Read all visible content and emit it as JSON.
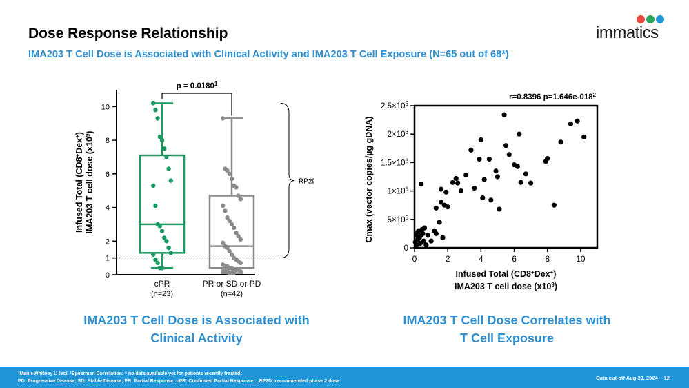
{
  "header": {
    "title": "Dose Response Relationship",
    "subtitle": "IMA203 T Cell Dose is Associated with Clinical Activity and IMA203 T Cell Exposure (N=65 out of 68*)",
    "logo_text": "immatics"
  },
  "colors": {
    "accent": "#2f8fcf",
    "footer": "#2196d8",
    "cpr_green": "#1a9a62",
    "other_gray": "#8a8a8a"
  },
  "chart_data": [
    {
      "type": "box",
      "ylabel_line1": "Infused Total (CD8+Dex+)",
      "ylabel_line2": "IMA203 T cell dose (x10^9)",
      "ylim": [
        0,
        11
      ],
      "yticks": [
        0,
        1,
        2,
        4,
        6,
        8,
        10
      ],
      "reference_line": 1,
      "pvalue_label": "p = 0.0180",
      "pvalue_sup": "1",
      "bracket_label": "RP2D",
      "groups": [
        {
          "name": "cPR",
          "n_label": "(n=23)",
          "color": "#1a9a62",
          "min": 0.4,
          "q1": 1.3,
          "median": 3.0,
          "q3": 7.1,
          "max": 10.2,
          "points": [
            10.2,
            9.8,
            9.3,
            8.2,
            8.0,
            7.5,
            7.0,
            6.3,
            5.6,
            5.3,
            4.1,
            3.0,
            2.9,
            2.6,
            2.2,
            2.0,
            1.6,
            1.3,
            1.2,
            0.9,
            0.7,
            0.4,
            0.4
          ]
        },
        {
          "name": "PR or SD or PD",
          "n_label": "(n=42)",
          "color": "#8a8a8a",
          "min": 0.1,
          "q1": 0.4,
          "median": 1.7,
          "q3": 4.7,
          "max": 9.3,
          "points": [
            9.3,
            6.3,
            6.2,
            6.0,
            5.7,
            5.3,
            5.2,
            4.7,
            4.5,
            4.1,
            3.8,
            3.4,
            3.2,
            3.0,
            2.8,
            2.5,
            2.3,
            2.1,
            1.9,
            1.7,
            1.6,
            1.4,
            1.2,
            1.0,
            0.9,
            0.8,
            0.7,
            0.6,
            0.5,
            0.5,
            0.4,
            0.4,
            0.3,
            0.3,
            0.3,
            0.2,
            0.2,
            0.2,
            0.2,
            0.1,
            0.1,
            0.1
          ]
        }
      ],
      "caption": [
        "IMA203 T Cell Dose is Associated with",
        "Clinical Activity"
      ]
    },
    {
      "type": "scatter",
      "xlabel_line1": "Infused Total (CD8+Dex+)",
      "xlabel_line2": "IMA203 T cell dose (x10^9)",
      "ylabel": "Cmax (vector copies/µg gDNA)",
      "xlim": [
        0,
        11
      ],
      "ylim": [
        0,
        2500000
      ],
      "xticks": [
        0,
        2,
        4,
        6,
        8,
        10
      ],
      "ytick_labels": [
        "0",
        "5×10^5",
        "1×10^6",
        "1.5×10^6",
        "2×10^6",
        "2.5×10^6"
      ],
      "ytick_values": [
        0,
        500000,
        1000000,
        1500000,
        2000000,
        2500000
      ],
      "stat_label": "r=0.8396   p=1.646e-018",
      "stat_sup": "2",
      "points": [
        [
          0.05,
          0.1
        ],
        [
          0.1,
          0.22
        ],
        [
          0.15,
          0.05
        ],
        [
          0.2,
          0.28
        ],
        [
          0.2,
          0.15
        ],
        [
          0.25,
          0.3
        ],
        [
          0.3,
          0.18
        ],
        [
          0.35,
          0.08
        ],
        [
          0.4,
          1.12
        ],
        [
          0.4,
          0.22
        ],
        [
          0.45,
          0.32
        ],
        [
          0.5,
          0.25
        ],
        [
          0.55,
          0.12
        ],
        [
          0.6,
          0.35
        ],
        [
          0.7,
          0.05
        ],
        [
          0.8,
          0.22
        ],
        [
          1.0,
          0.12
        ],
        [
          1.2,
          0.3
        ],
        [
          1.3,
          0.25
        ],
        [
          1.3,
          0.7
        ],
        [
          1.5,
          0.45
        ],
        [
          1.6,
          0.8
        ],
        [
          1.6,
          1.03
        ],
        [
          1.7,
          0.18
        ],
        [
          1.8,
          0.75
        ],
        [
          1.9,
          0.98
        ],
        [
          2.0,
          0.72
        ],
        [
          2.3,
          1.15
        ],
        [
          2.5,
          1.22
        ],
        [
          2.6,
          1.14
        ],
        [
          2.8,
          1.0
        ],
        [
          3.1,
          1.28
        ],
        [
          3.4,
          1.72
        ],
        [
          3.6,
          1.05
        ],
        [
          3.9,
          1.56
        ],
        [
          4.0,
          1.9
        ],
        [
          4.1,
          0.88
        ],
        [
          4.2,
          1.2
        ],
        [
          4.5,
          1.56
        ],
        [
          4.6,
          0.84
        ],
        [
          4.9,
          1.35
        ],
        [
          5.0,
          1.25
        ],
        [
          5.1,
          0.68
        ],
        [
          5.4,
          2.34
        ],
        [
          5.5,
          1.8
        ],
        [
          5.7,
          1.64
        ],
        [
          6.0,
          1.46
        ],
        [
          6.2,
          1.43
        ],
        [
          6.3,
          2.0
        ],
        [
          6.4,
          1.15
        ],
        [
          6.7,
          1.3
        ],
        [
          7.0,
          1.14
        ],
        [
          7.9,
          1.52
        ],
        [
          8.0,
          1.57
        ],
        [
          8.4,
          0.75
        ],
        [
          8.8,
          1.86
        ],
        [
          9.4,
          2.18
        ],
        [
          9.8,
          2.23
        ],
        [
          10.2,
          1.95
        ]
      ],
      "points_y_unit": "x10^6 vector copies/µg gDNA",
      "caption": [
        "IMA203 T Cell Dose Correlates with",
        "T Cell Exposure"
      ]
    }
  ],
  "footer": {
    "line1": "¹Mann-Whitney U test, ²Spearman Correlation; * no data available yet for patients recently treated;",
    "line2": "PD: Progressive Disease; SD: Stable Disease; PR: Partial Response; cPR: Confirmed Partial Response; , RP2D: recommended phase 2 dose",
    "cutoff": "Data cut-off Aug 23, 2024",
    "page": "12"
  }
}
